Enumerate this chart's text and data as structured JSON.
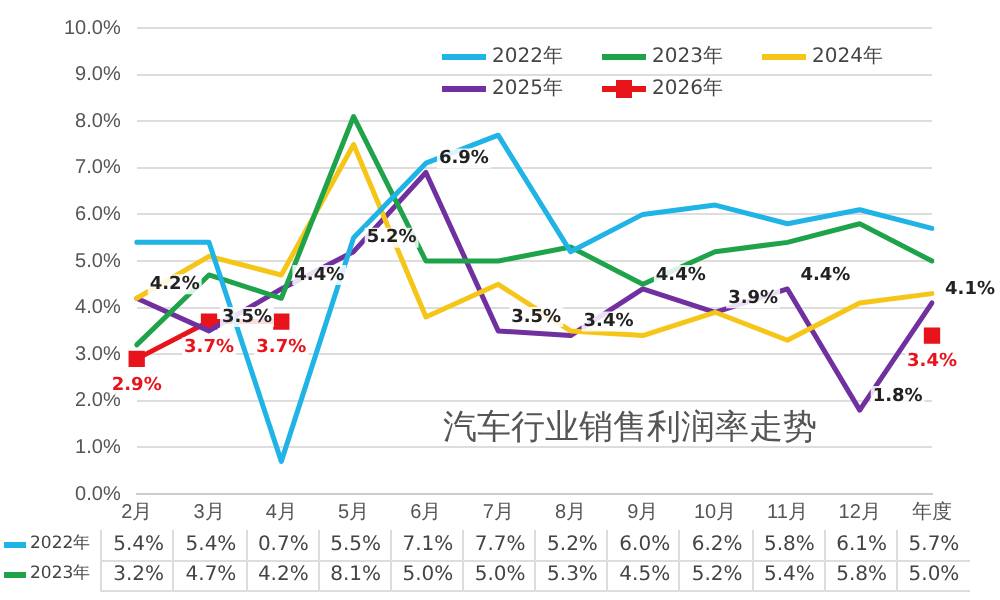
{
  "chart_data": {
    "type": "line",
    "title": "汽车行业销售利润率走势",
    "categories": [
      "2月",
      "3月",
      "4月",
      "5月",
      "6月",
      "7月",
      "8月",
      "9月",
      "10月",
      "11月",
      "12月",
      "年度"
    ],
    "series": [
      {
        "name": "2022年",
        "color": "#1fb3e6",
        "marker": "none",
        "values": [
          5.4,
          5.4,
          0.7,
          5.5,
          7.1,
          7.7,
          5.2,
          6.0,
          6.2,
          5.8,
          6.1,
          5.7
        ],
        "value_labels": [
          "5.4%",
          "5.4%",
          "0.7%",
          "5.5%",
          "7.1%",
          "7.7%",
          "5.2%",
          "6.0%",
          "6.2%",
          "5.8%",
          "6.1%",
          "5.7%"
        ]
      },
      {
        "name": "2023年",
        "color": "#1ea34a",
        "marker": "none",
        "values": [
          3.2,
          4.7,
          4.2,
          8.1,
          5.0,
          5.0,
          5.3,
          4.5,
          5.2,
          5.4,
          5.8,
          5.0
        ],
        "value_labels": [
          "3.2%",
          "4.7%",
          "4.2%",
          "8.1%",
          "5.0%",
          "5.0%",
          "5.3%",
          "4.5%",
          "5.2%",
          "5.4%",
          "5.8%",
          "5.0%"
        ]
      },
      {
        "name": "2024年",
        "color": "#f5c518",
        "marker": "none",
        "values": [
          4.2,
          5.1,
          4.7,
          7.5,
          3.8,
          4.5,
          3.5,
          3.4,
          3.9,
          3.3,
          4.1,
          4.3
        ]
      },
      {
        "name": "2025年",
        "color": "#7030a0",
        "marker": "none",
        "values": [
          4.2,
          3.5,
          4.4,
          5.2,
          6.9,
          3.5,
          3.4,
          4.4,
          3.9,
          4.4,
          1.8,
          4.1
        ]
      },
      {
        "name": "2026年",
        "color": "#e8141b",
        "marker": "square",
        "values": [
          2.9,
          3.7,
          3.7,
          null,
          null,
          null,
          null,
          null,
          null,
          null,
          null,
          3.4
        ]
      }
    ],
    "ylim": [
      0,
      10
    ],
    "yticks": [
      {
        "value": 0,
        "label": "0.0%"
      },
      {
        "value": 1,
        "label": "1.0%"
      },
      {
        "value": 2,
        "label": "2.0%"
      },
      {
        "value": 3,
        "label": "3.0%"
      },
      {
        "value": 4,
        "label": "4.0%"
      },
      {
        "value": 5,
        "label": "5.0%"
      },
      {
        "value": 6,
        "label": "6.0%"
      },
      {
        "value": 7,
        "label": "7.0%"
      },
      {
        "value": 8,
        "label": "8.0%"
      },
      {
        "value": 9,
        "label": "9.0%"
      },
      {
        "value": 10,
        "label": "10.0%"
      }
    ],
    "grid": "y",
    "legend": "top right",
    "line_style": "solid",
    "annotations": [
      {
        "text": "4.2%",
        "x": "2月",
        "y": 4.2
      },
      {
        "text": "3.5%",
        "x": "3月",
        "y": 3.5
      },
      {
        "text": "4.4%",
        "x": "4月",
        "y": 4.4
      },
      {
        "text": "5.2%",
        "x": "5月",
        "y": 5.2
      },
      {
        "text": "6.9%",
        "x": "6月",
        "y": 6.9
      },
      {
        "text": "3.5%",
        "x": "7月",
        "y": 3.5
      },
      {
        "text": "3.4%",
        "x": "8月",
        "y": 3.4
      },
      {
        "text": "4.4%",
        "x": "9月",
        "y": 4.4
      },
      {
        "text": "3.9%",
        "x": "10月",
        "y": 3.9
      },
      {
        "text": "4.4%",
        "x": "11月",
        "y": 4.4
      },
      {
        "text": "1.8%",
        "x": "12月",
        "y": 1.8
      },
      {
        "text": "4.1%",
        "x": "年度",
        "y": 4.1
      },
      {
        "text": "2.9%",
        "x": "2月",
        "y": 2.9
      },
      {
        "text": "3.7%",
        "x": "3月",
        "y": 3.7
      },
      {
        "text": "3.7%",
        "x": "4月",
        "y": 3.7
      },
      {
        "text": "3.4%",
        "x": "年度",
        "y": 3.4
      }
    ]
  }
}
